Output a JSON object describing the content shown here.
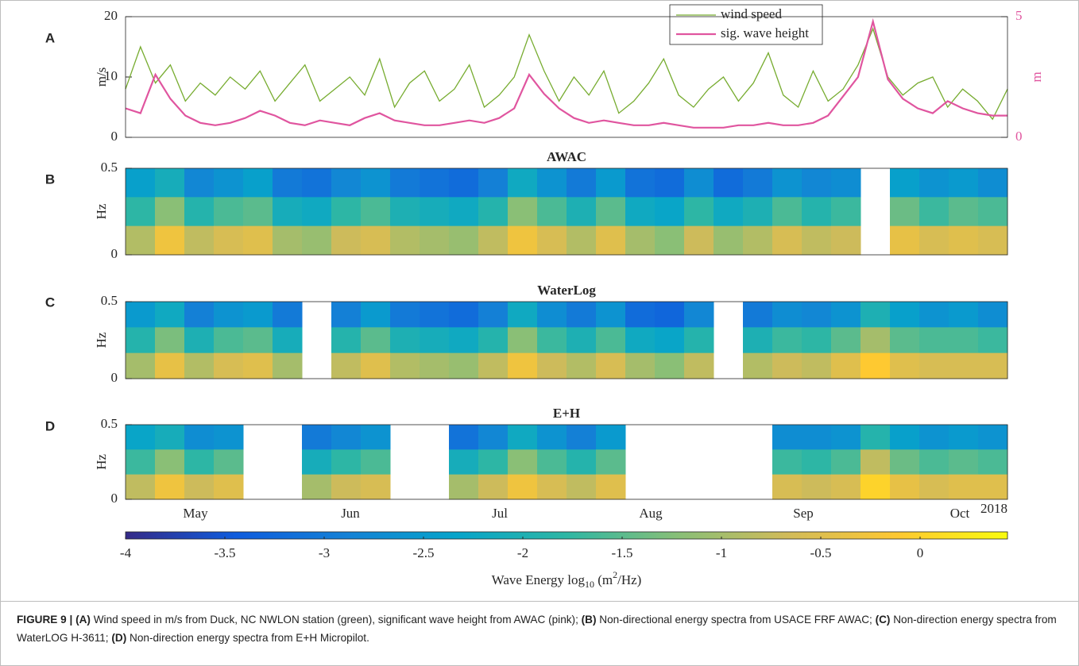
{
  "chart_data": [
    {
      "type": "line",
      "panel_label": "A",
      "ylabel": "m/s",
      "y2label": "m",
      "ylim": [
        0,
        20
      ],
      "yticks": [
        0,
        10,
        20
      ],
      "y2lim": [
        0,
        5
      ],
      "y2ticks": [
        0,
        5
      ],
      "legend": "top-right",
      "series": [
        {
          "name": "wind speed",
          "color": "#77ac30",
          "values": [
            8,
            15,
            9,
            12,
            6,
            9,
            7,
            10,
            8,
            11,
            6,
            9,
            12,
            6,
            8,
            10,
            7,
            13,
            5,
            9,
            11,
            6,
            8,
            12,
            5,
            7,
            10,
            17,
            11,
            6,
            10,
            7,
            11,
            4,
            6,
            9,
            13,
            7,
            5,
            8,
            10,
            6,
            9,
            14,
            7,
            5,
            11,
            6,
            8,
            12,
            18,
            10,
            7,
            9,
            10,
            5,
            8,
            6,
            3,
            8
          ]
        },
        {
          "name": "sig. wave height",
          "color": "#e0559f",
          "axis": "y2",
          "values": [
            1.2,
            1.0,
            2.6,
            1.6,
            0.9,
            0.6,
            0.5,
            0.6,
            0.8,
            1.1,
            0.9,
            0.6,
            0.5,
            0.7,
            0.6,
            0.5,
            0.8,
            1.0,
            0.7,
            0.6,
            0.5,
            0.5,
            0.6,
            0.7,
            0.6,
            0.8,
            1.2,
            2.6,
            1.8,
            1.2,
            0.8,
            0.6,
            0.7,
            0.6,
            0.5,
            0.5,
            0.6,
            0.5,
            0.4,
            0.4,
            0.4,
            0.5,
            0.5,
            0.6,
            0.5,
            0.5,
            0.6,
            0.9,
            1.7,
            2.5,
            4.8,
            2.4,
            1.6,
            1.2,
            1.0,
            1.5,
            1.2,
            1.0,
            0.9,
            0.9
          ]
        }
      ]
    },
    {
      "type": "heatmap",
      "panel_label": "B",
      "title": "AWAC",
      "ylabel": "Hz",
      "ylim": [
        0,
        0.5
      ],
      "yticks": [
        0,
        0.5
      ],
      "z": [
        [
          -2.4,
          -2.1,
          -2.8,
          -2.6,
          -2.4,
          -3.0,
          -3.1,
          -2.8,
          -2.6,
          -3.0,
          -3.1,
          -3.2,
          -2.9,
          -2.2,
          -2.6,
          -3.0,
          -2.5,
          -3.1,
          -3.2,
          -2.7,
          -3.2,
          -3.0,
          -2.6,
          -2.8,
          -2.7,
          null,
          -2.4,
          -2.6,
          -2.5,
          -2.7
        ],
        [
          -1.8,
          -1.2,
          -1.9,
          -1.6,
          -1.5,
          -2.1,
          -2.2,
          -1.8,
          -1.6,
          -2.0,
          -2.1,
          -2.2,
          -1.9,
          -1.2,
          -1.6,
          -2.0,
          -1.5,
          -2.2,
          -2.3,
          -1.8,
          -2.2,
          -2.0,
          -1.6,
          -1.9,
          -1.7,
          null,
          -1.4,
          -1.7,
          -1.5,
          -1.6
        ],
        [
          -0.9,
          -0.3,
          -0.8,
          -0.6,
          -0.5,
          -1.0,
          -1.1,
          -0.7,
          -0.6,
          -0.9,
          -1.0,
          -1.1,
          -0.8,
          -0.3,
          -0.6,
          -0.9,
          -0.5,
          -1.0,
          -1.2,
          -0.7,
          -1.1,
          -0.9,
          -0.6,
          -0.8,
          -0.7,
          null,
          -0.4,
          -0.6,
          -0.5,
          -0.6
        ]
      ]
    },
    {
      "type": "heatmap",
      "panel_label": "C",
      "title": "WaterLog",
      "ylabel": "Hz",
      "ylim": [
        0,
        0.5
      ],
      "yticks": [
        0,
        0.5
      ],
      "z": [
        [
          -2.5,
          -2.2,
          -2.9,
          -2.6,
          -2.5,
          -3.0,
          null,
          -2.9,
          -2.5,
          -3.0,
          -3.1,
          -3.2,
          -2.9,
          -2.2,
          -2.7,
          -3.0,
          -2.6,
          -3.2,
          -3.3,
          -2.8,
          null,
          -3.0,
          -2.7,
          -2.8,
          -2.6,
          -2.0,
          -2.4,
          -2.6,
          -2.5,
          -2.7
        ],
        [
          -1.9,
          -1.3,
          -2.0,
          -1.6,
          -1.5,
          -2.1,
          null,
          -1.9,
          -1.5,
          -2.0,
          -2.1,
          -2.2,
          -1.9,
          -1.2,
          -1.7,
          -2.0,
          -1.6,
          -2.2,
          -2.3,
          -1.9,
          null,
          -2.0,
          -1.7,
          -1.8,
          -1.5,
          -1.0,
          -1.5,
          -1.6,
          -1.6,
          -1.7
        ],
        [
          -1.0,
          -0.4,
          -0.9,
          -0.6,
          -0.5,
          -1.0,
          null,
          -0.8,
          -0.5,
          -0.9,
          -1.0,
          -1.1,
          -0.8,
          -0.3,
          -0.7,
          -0.9,
          -0.6,
          -1.0,
          -1.2,
          -0.8,
          null,
          -0.9,
          -0.7,
          -0.8,
          -0.5,
          -0.1,
          -0.5,
          -0.6,
          -0.6,
          -0.6
        ]
      ]
    },
    {
      "type": "heatmap",
      "panel_label": "D",
      "title": "E+H",
      "ylabel": "Hz",
      "ylim": [
        0,
        0.5
      ],
      "yticks": [
        0,
        0.5
      ],
      "z": [
        [
          -2.3,
          -2.1,
          -2.7,
          -2.6,
          null,
          null,
          -3.0,
          -2.8,
          -2.6,
          null,
          null,
          -3.1,
          -2.8,
          -2.2,
          -2.6,
          -2.9,
          -2.5,
          null,
          null,
          null,
          null,
          null,
          -2.7,
          -2.7,
          -2.6,
          -1.9,
          -2.4,
          -2.6,
          -2.5,
          -2.6
        ],
        [
          -1.7,
          -1.2,
          -1.8,
          -1.5,
          null,
          null,
          -2.1,
          -1.8,
          -1.6,
          null,
          null,
          -2.1,
          -1.8,
          -1.2,
          -1.6,
          -1.9,
          -1.5,
          null,
          null,
          null,
          null,
          null,
          -1.7,
          -1.8,
          -1.6,
          -0.8,
          -1.4,
          -1.6,
          -1.5,
          -1.6
        ],
        [
          -0.8,
          -0.3,
          -0.7,
          -0.5,
          null,
          null,
          -1.0,
          -0.7,
          -0.6,
          null,
          null,
          -1.0,
          -0.7,
          -0.3,
          -0.6,
          -0.8,
          -0.5,
          null,
          null,
          null,
          null,
          null,
          -0.6,
          -0.7,
          -0.6,
          0.0,
          -0.4,
          -0.6,
          -0.5,
          -0.5
        ]
      ]
    }
  ],
  "x_axis": {
    "months": [
      "May",
      "Jun",
      "Jul",
      "Aug",
      "Sep",
      "Oct"
    ],
    "year": "2018"
  },
  "colorbar": {
    "clim": [
      -4,
      0.44
    ],
    "ticks": [
      -4,
      -3.5,
      -3,
      -2.5,
      -2,
      -1.5,
      -1,
      -0.5,
      0
    ],
    "colormap": [
      "#352a87",
      "#0f5cdd",
      "#1481d6",
      "#06a4ca",
      "#2eb7a4",
      "#87bf77",
      "#d1bb59",
      "#fec832",
      "#f9fb0e"
    ],
    "label_parts": [
      {
        "text": "Wave Energy log"
      },
      {
        "text": "10",
        "shift": "sub"
      },
      {
        "text": " (m"
      },
      {
        "text": "2",
        "shift": "super"
      },
      {
        "text": "/Hz)"
      }
    ]
  },
  "caption": [
    {
      "text": "FIGURE 9 | ",
      "bold": true
    },
    {
      "text": "(A)",
      "bold": true
    },
    {
      "text": " Wind speed in m/s from Duck, NC NWLON station (green), significant wave height from AWAC (pink); ",
      "bold": false
    },
    {
      "text": "(B)",
      "bold": true
    },
    {
      "text": " Non-directional energy spectra from USACE FRF AWAC; ",
      "bold": false
    },
    {
      "text": "(C)",
      "bold": true
    },
    {
      "text": " Non-direction energy spectra from WaterLOG H-3611; ",
      "bold": false
    },
    {
      "text": "(D)",
      "bold": true
    },
    {
      "text": " Non-direction energy spectra from E+H Micropilot.",
      "bold": false
    }
  ]
}
